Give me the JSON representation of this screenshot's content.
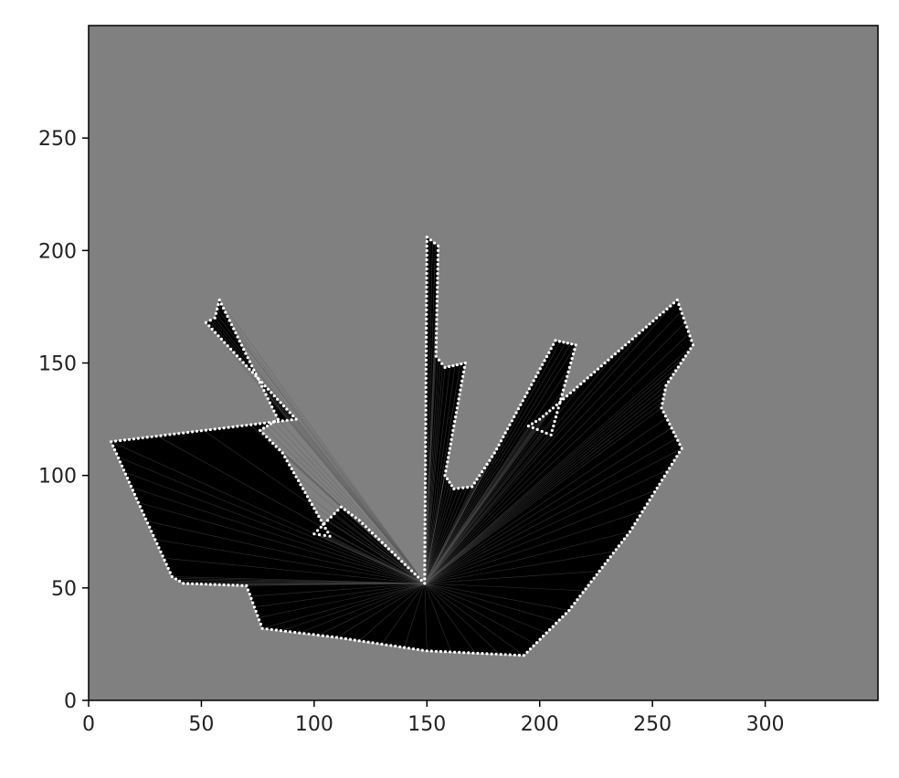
{
  "chart_data": {
    "type": "occupancy-grid",
    "title": "",
    "xlabel": "",
    "ylabel": "",
    "xlim": [
      0,
      350
    ],
    "ylim": [
      0,
      300
    ],
    "x_ticks": [
      0,
      50,
      100,
      150,
      200,
      250,
      300
    ],
    "y_ticks": [
      0,
      50,
      100,
      150,
      200,
      250
    ],
    "x_tick_labels": [
      "0",
      "50",
      "100",
      "150",
      "200",
      "250",
      "300"
    ],
    "y_tick_labels": [
      "0",
      "50",
      "100",
      "150",
      "200",
      "250"
    ],
    "legend": "none",
    "grid": false,
    "colors": {
      "unknown": "#808080",
      "free": "#000000",
      "occupied": "#ffffff"
    },
    "sensor_origin": [
      149,
      52
    ],
    "scan_boundary": [
      [
        10,
        115
      ],
      [
        22,
        88
      ],
      [
        37,
        55
      ],
      [
        42,
        52
      ],
      [
        70,
        51
      ],
      [
        77,
        32
      ],
      [
        110,
        28
      ],
      [
        150,
        22
      ],
      [
        193,
        20
      ],
      [
        213,
        40
      ],
      [
        240,
        75
      ],
      [
        263,
        112
      ],
      [
        254,
        130
      ],
      [
        256,
        140
      ],
      [
        268,
        158
      ],
      [
        261,
        178
      ],
      [
        206,
        130
      ],
      [
        200,
        125
      ],
      [
        195,
        122
      ],
      [
        205,
        118
      ],
      [
        216,
        158
      ],
      [
        207,
        160
      ],
      [
        180,
        110
      ],
      [
        170,
        95
      ],
      [
        162,
        94
      ],
      [
        158,
        100
      ],
      [
        167,
        150
      ],
      [
        158,
        148
      ],
      [
        154,
        153
      ],
      [
        155,
        202
      ],
      [
        150,
        206
      ],
      [
        149,
        52
      ],
      [
        120,
        80
      ],
      [
        112,
        86
      ],
      [
        100,
        74
      ],
      [
        107,
        73
      ],
      [
        86,
        110
      ],
      [
        76,
        120
      ],
      [
        84,
        125
      ],
      [
        58,
        178
      ],
      [
        56,
        170
      ],
      [
        52,
        168
      ],
      [
        92,
        125
      ]
    ]
  }
}
